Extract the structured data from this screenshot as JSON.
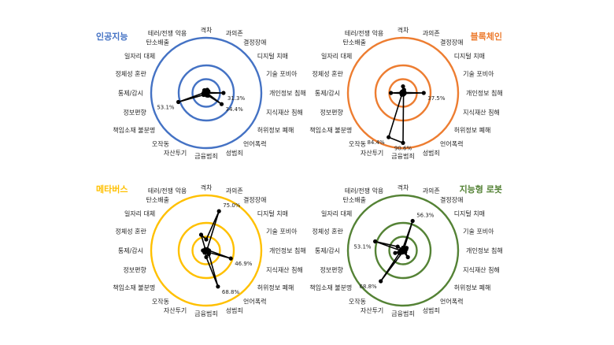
{
  "chart_data": [
    {
      "type": "radar",
      "title": "인공지능",
      "color": "#4472C4",
      "categories": [
        "격차",
        "과의존",
        "결정장애",
        "디지털 치매",
        "기술 포비아",
        "개인정보 침해",
        "지식재산 침해",
        "허위정보 폐해",
        "언어폭력",
        "성범죄",
        "금융범죄",
        "자산투기",
        "오작동",
        "책임소재 불분명",
        "정보편향",
        "통제/감시",
        "정체성 혼란",
        "일자리 대체",
        "탄소배출",
        "테러/전쟁 악용"
      ],
      "values": [
        4,
        6,
        2,
        5,
        3,
        31.3,
        2,
        34.4,
        6,
        5,
        4,
        3,
        2,
        6,
        53.1,
        5,
        4,
        3,
        6,
        5
      ],
      "value_labels": {
        "5": "31.3%",
        "7": "34.4%",
        "14": "53.1%"
      },
      "rmax": 100,
      "rings": [
        25,
        50,
        100
      ]
    },
    {
      "type": "radar",
      "title": "블록체인",
      "color": "#ED7D31",
      "categories": [
        "격차",
        "과의존",
        "결정장애",
        "디지털 치매",
        "기술 포비아",
        "개인정보 침해",
        "지식재산 침해",
        "허위정보 폐해",
        "언어폭력",
        "성범죄",
        "금융범죄",
        "자산투기",
        "오작동",
        "책임소재 불분명",
        "정보편향",
        "통제/감시",
        "정체성 혼란",
        "일자리 대체",
        "탄소배출",
        "테러/전쟁 악용"
      ],
      "values": [
        12,
        6,
        3,
        2,
        3,
        37.5,
        3,
        2,
        2,
        3,
        90.6,
        84.4,
        4,
        3,
        3,
        22,
        3,
        2,
        3,
        3
      ],
      "value_labels": {
        "5": "37.5%",
        "10": "90.6%",
        "11": "84.4%"
      },
      "rmax": 100,
      "rings": [
        25,
        50,
        100
      ]
    },
    {
      "type": "radar",
      "title": "메타버스",
      "color": "#FFC000",
      "categories": [
        "격차",
        "과의존",
        "결정장애",
        "디지털 치매",
        "기술 포비아",
        "개인정보 침해",
        "지식재산 침해",
        "허위정보 폐해",
        "언어폭력",
        "성범죄",
        "금융범죄",
        "자산투기",
        "오작동",
        "책임소재 불분명",
        "정보편향",
        "통제/감시",
        "정체성 혼란",
        "일자리 대체",
        "탄소배출",
        "테러/전쟁 악용"
      ],
      "values": [
        20,
        75.0,
        3,
        2,
        3,
        5,
        46.9,
        6,
        8,
        68.8,
        12,
        3,
        5,
        3,
        4,
        6,
        3,
        2,
        3,
        30
      ],
      "value_labels": {
        "1": "75.0%",
        "6": "46.9%",
        "9": "68.8%"
      },
      "rmax": 100,
      "rings": [
        25,
        50,
        100
      ]
    },
    {
      "type": "radar",
      "title": "지능형 로봇",
      "color": "#548235",
      "categories": [
        "격차",
        "과의존",
        "결정장애",
        "디지털 치매",
        "기술 포비아",
        "개인정보 침해",
        "지식재산 침해",
        "허위정보 폐해",
        "언어폭력",
        "성범죄",
        "금융범죄",
        "자산투기",
        "오작동",
        "책임소재 불분명",
        "정보편향",
        "통제/감시",
        "정체성 혼란",
        "일자리 대체",
        "탄소배출",
        "테러/전쟁 악용"
      ],
      "values": [
        5,
        56.3,
        3,
        8,
        6,
        3,
        2,
        5,
        15,
        3,
        2,
        4,
        68.8,
        8,
        15,
        5,
        53.1,
        12,
        3,
        2
      ],
      "value_labels": {
        "1": "56.3%",
        "12": "68.8%",
        "16": "53.1%"
      },
      "rmax": 100,
      "rings": [
        25,
        50,
        100
      ]
    }
  ]
}
